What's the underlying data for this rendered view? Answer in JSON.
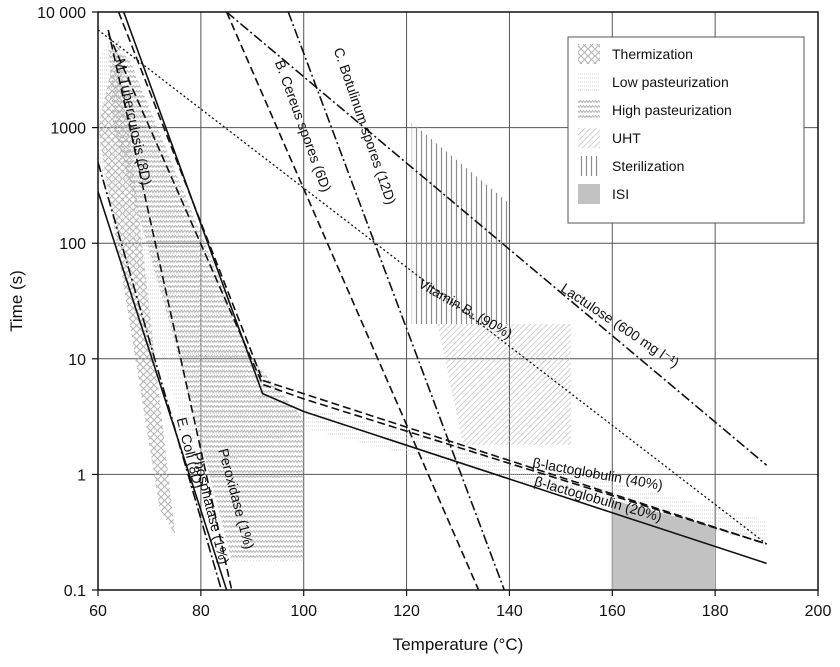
{
  "chart_data": {
    "type": "line",
    "title": "",
    "xlabel": "Temperature (°C)",
    "ylabel": "Time (s)",
    "xlim": [
      60,
      200
    ],
    "ylim": [
      0.1,
      10000
    ],
    "yscale": "log",
    "grid": true,
    "x_ticks": [
      "60",
      "80",
      "100",
      "120",
      "140",
      "160",
      "180",
      "200"
    ],
    "y_ticks": [
      "0.1",
      "1",
      "10",
      "100",
      "1000",
      "10 000"
    ],
    "legend_position": "top-right",
    "legend": [
      {
        "label": "Thermization",
        "pattern": "crosshatch"
      },
      {
        "label": "Low pasteurization",
        "pattern": "fine-dots"
      },
      {
        "label": "High pasteurization",
        "pattern": "wavy"
      },
      {
        "label": "UHT",
        "pattern": "diagonal"
      },
      {
        "label": "Sterilization",
        "pattern": "vertical"
      },
      {
        "label": "ISI",
        "pattern": "solid-gray"
      }
    ],
    "regions": [
      {
        "name": "Thermization",
        "pattern": "crosshatch",
        "points": [
          [
            60,
            1000
          ],
          [
            64,
            6000
          ],
          [
            75,
            0.3
          ],
          [
            72,
            0.5
          ],
          [
            63,
            150
          ]
        ]
      },
      {
        "name": "Low pasteurization",
        "pattern": "fine-dots",
        "points": [
          [
            60,
            4000
          ],
          [
            63,
            6000
          ],
          [
            90,
            5
          ],
          [
            190,
            0.4
          ],
          [
            190,
            0.25
          ],
          [
            100,
            2.5
          ],
          [
            80,
            1
          ],
          [
            70,
            20
          ],
          [
            60,
            500
          ]
        ]
      },
      {
        "name": "High pasteurization",
        "pattern": "wavy",
        "points": [
          [
            62,
            5000
          ],
          [
            66,
            4000
          ],
          [
            90,
            10
          ],
          [
            100,
            3
          ],
          [
            100,
            0.18
          ],
          [
            86,
            0.18
          ],
          [
            74,
            20
          ],
          [
            63,
            1000
          ]
        ]
      },
      {
        "name": "UHT",
        "pattern": "diagonal",
        "points": [
          [
            126,
            20
          ],
          [
            152,
            20
          ],
          [
            152,
            1.8
          ],
          [
            131,
            1.8
          ]
        ]
      },
      {
        "name": "Sterilization",
        "pattern": "vertical",
        "points": [
          [
            121,
            1100
          ],
          [
            140,
            220
          ],
          [
            140,
            20
          ],
          [
            121,
            20
          ]
        ]
      },
      {
        "name": "ISI",
        "pattern": "solid-gray",
        "points": [
          [
            160,
            0.6
          ],
          [
            180,
            0.35
          ],
          [
            180,
            0.1
          ],
          [
            160,
            0.1
          ]
        ]
      }
    ],
    "series": [
      {
        "name": "M. Tuberculosis (8D)",
        "style": "dash",
        "points": [
          [
            64,
            10000
          ],
          [
            92,
            6.5
          ],
          [
            190,
            0.25
          ]
        ]
      },
      {
        "name": "E. Coli (8D)",
        "style": "dashdot",
        "points": [
          [
            60,
            500
          ],
          [
            84,
            0.1
          ]
        ]
      },
      {
        "name": "Phosphatase (1%)",
        "style": "solid",
        "points": [
          [
            60,
            280
          ],
          [
            85,
            0.1
          ]
        ]
      },
      {
        "name": "Peroxidase (1%)",
        "style": "dash",
        "points": [
          [
            62,
            7000
          ],
          [
            86,
            0.1
          ]
        ]
      },
      {
        "name": "B. Cereus spores (6D)",
        "style": "dash",
        "points": [
          [
            85,
            10000
          ],
          [
            134,
            0.1
          ]
        ]
      },
      {
        "name": "C. Botulinum spores (12D)",
        "style": "dashdot",
        "points": [
          [
            97,
            10000
          ],
          [
            139,
            0.1
          ]
        ]
      },
      {
        "name": "Vitamin B1 (90%)",
        "style": "dot",
        "points": [
          [
            60,
            7000
          ],
          [
            190,
            0.25
          ]
        ]
      },
      {
        "name": "Lactulose (600 mg l⁻¹)",
        "style": "dashdot",
        "points": [
          [
            85,
            10000
          ],
          [
            190,
            1.2
          ]
        ]
      },
      {
        "name": "β-lactoglobulin (40%)",
        "style": "dash",
        "points": [
          [
            62,
            6500
          ],
          [
            92,
            6
          ],
          [
            100,
            4.5
          ],
          [
            190,
            0.25
          ]
        ]
      },
      {
        "name": "β-lactoglobulin (20%)",
        "style": "solid",
        "points": [
          [
            65,
            10000
          ],
          [
            92,
            5
          ],
          [
            100,
            3.5
          ],
          [
            190,
            0.17
          ]
        ]
      }
    ],
    "annotations": [
      {
        "text": "M. Tuberculosis (8D)",
        "x": 66,
        "y": 1100,
        "angle": 78
      },
      {
        "text": "E. Coli (8D)",
        "x": 77,
        "y": 1.5,
        "angle": 76
      },
      {
        "text": "Phosphatase (1%)",
        "x": 81,
        "y": 0.5,
        "angle": 76
      },
      {
        "text": "Peroxidase (1%)",
        "x": 86,
        "y": 0.6,
        "angle": 75
      },
      {
        "text": "B. Cereus spores (6D)",
        "x": 99,
        "y": 1000,
        "angle": 70
      },
      {
        "text": "C. Botulinum spores (12D)",
        "x": 111,
        "y": 1000,
        "angle": 71
      },
      {
        "text": "Vitamin B₁ (90%)",
        "x": 131,
        "y": 25,
        "angle": 30
      },
      {
        "text": "Lactulose (600 mg l⁻¹)",
        "x": 161,
        "y": 18,
        "angle": 34
      },
      {
        "text": "β-lactoglobulin (40%)",
        "x": 157,
        "y": 0.92,
        "angle": 10
      },
      {
        "text": "β-lactoglobulin (20%)",
        "x": 157,
        "y": 0.56,
        "angle": 16
      }
    ]
  }
}
